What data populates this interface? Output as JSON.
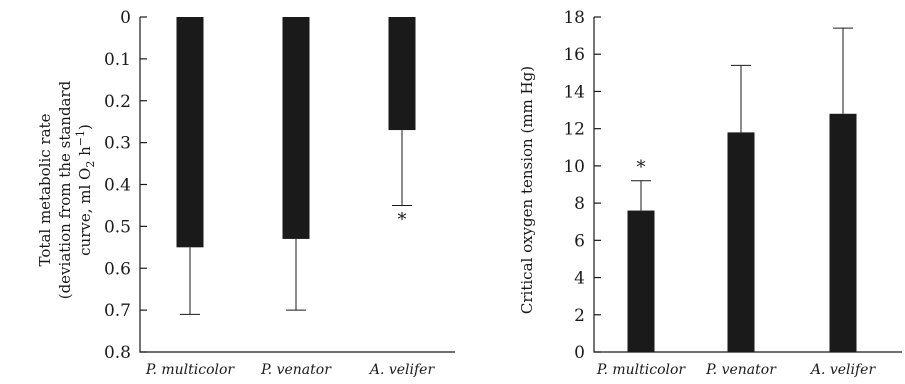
{
  "chart_data": [
    {
      "type": "bar",
      "ylabel_lines": [
        "Total metabolic rate",
        "(deviation from the standard",
        "curve, ml O",
        "2",
        " h",
        "−1",
        ")"
      ],
      "categories": [
        "P. multicolor",
        "P. venator",
        "A. velifer"
      ],
      "values": [
        0.55,
        0.53,
        0.27
      ],
      "error_upper": [
        0.71,
        0.7,
        0.45
      ],
      "significance": [
        "",
        "",
        "*"
      ],
      "ylim": [
        0,
        0.8
      ],
      "y_inverted": true,
      "yticks": [
        "0",
        "0.1",
        "0.2",
        "0.3",
        "0.4",
        "0.5",
        "0.6",
        "0.7",
        "0.8"
      ],
      "ytick_values": [
        0,
        0.1,
        0.2,
        0.3,
        0.4,
        0.5,
        0.6,
        0.7,
        0.8
      ]
    },
    {
      "type": "bar",
      "ylabel": "Critical oxygen tension (mm Hg)",
      "categories": [
        "P. multicolor",
        "P. venator",
        "A. velifer"
      ],
      "values": [
        7.6,
        11.8,
        12.8
      ],
      "error_upper": [
        9.2,
        15.4,
        17.4
      ],
      "significance": [
        "*",
        "",
        ""
      ],
      "ylim": [
        0,
        18
      ],
      "y_inverted": false,
      "yticks": [
        "0",
        "2",
        "4",
        "6",
        "8",
        "10",
        "12",
        "14",
        "16",
        "18"
      ],
      "ytick_values": [
        0,
        2,
        4,
        6,
        8,
        10,
        12,
        14,
        16,
        18
      ]
    }
  ]
}
